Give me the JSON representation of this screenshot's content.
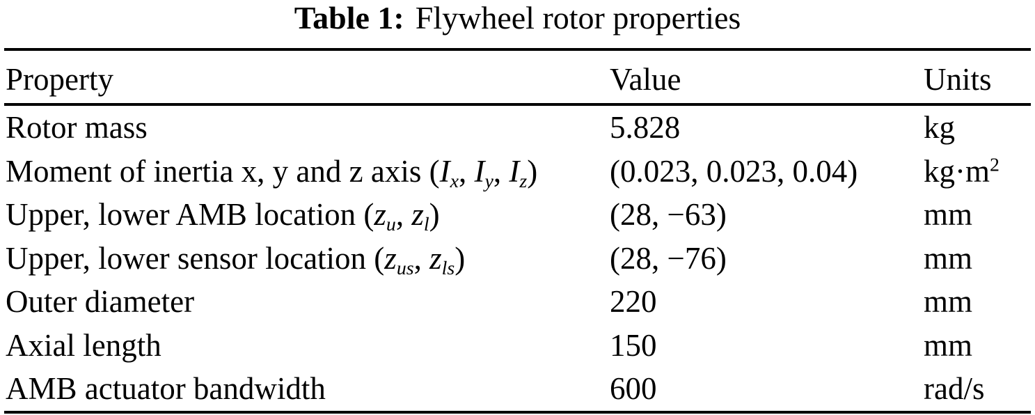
{
  "page": {
    "background_color": "#ffffff",
    "ink_color": "#000000"
  },
  "table": {
    "title": {
      "label": "Table 1:",
      "text": "Flywheel rotor properties"
    },
    "columns": [
      "Property",
      "Value",
      "Units"
    ],
    "rows": [
      {
        "property": [
          "Rotor mass"
        ],
        "value": "5.828",
        "units": [
          "kg"
        ]
      },
      {
        "property": [
          "Moment of inertia x, y and z axis (",
          "I",
          "x",
          ", ",
          "I",
          "y",
          ", ",
          "I",
          "z",
          ")"
        ],
        "value": "(0.023, 0.023, 0.04)",
        "units": [
          "kg·m",
          "2"
        ]
      },
      {
        "property": [
          "Upper, lower AMB location (",
          "z",
          "u",
          ", ",
          "z",
          "l",
          ")"
        ],
        "value": "(28, −63)",
        "units": [
          "mm"
        ]
      },
      {
        "property": [
          "Upper, lower sensor location (",
          "z",
          "us",
          ", ",
          "z",
          "ls",
          ")"
        ],
        "value": "(28, −76)",
        "units": [
          "mm"
        ]
      },
      {
        "property": [
          "Outer diameter"
        ],
        "value": "220",
        "units": [
          "mm"
        ]
      },
      {
        "property": [
          "Axial length"
        ],
        "value": "150",
        "units": [
          "mm"
        ]
      },
      {
        "property": [
          "AMB actuator bandwidth"
        ],
        "value": "600",
        "units": [
          "rad/s"
        ]
      }
    ]
  }
}
